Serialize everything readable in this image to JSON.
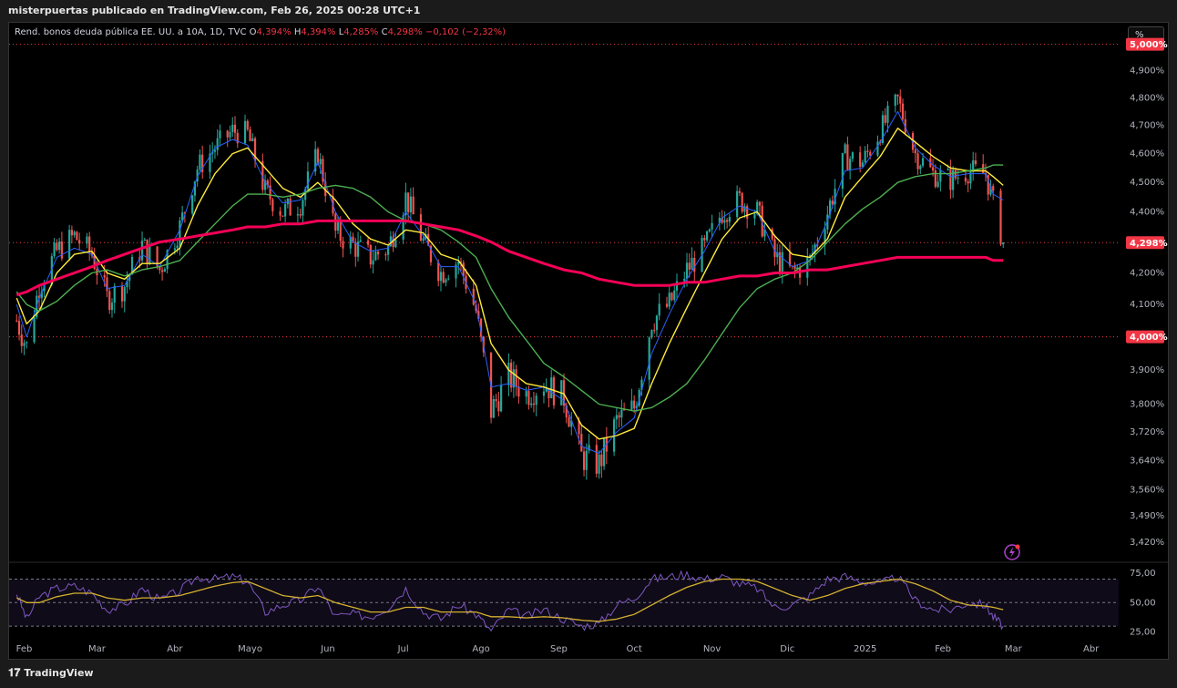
{
  "caption": "misterpuertas publicado en TradingView.com, Feb 26, 2025 00:28 UTC+1",
  "brand": "TradingView",
  "legend": {
    "symbol": "Rend. bonos deuda pública EE. UU. a 10A, 1D, TVC",
    "o_label": "O",
    "o_value": "4,394%",
    "h_label": "H",
    "h_value": "4,394%",
    "l_label": "L",
    "l_value": "4,285%",
    "c_label": "C",
    "c_value": "4,298%",
    "change": "−0,102 (−2,32%)"
  },
  "unit_button": "%",
  "colors": {
    "up": "#26a69a",
    "down": "#ef5350",
    "ma_fast": "#2962ff",
    "ma_yellow": "#ffeb3b",
    "ma_green": "#4caf50",
    "ma_long": "#f50057",
    "rsi_line": "#7e57c2",
    "rsi_avg": "#d4b030",
    "level_tag": "#f23645"
  },
  "chart_data": [
    {
      "type": "candlestick",
      "title": "Rend. bonos deuda pública EE. UU. a 10A, 1D, TVC",
      "x_ticks": [
        "Feb",
        "Mar",
        "Abr",
        "Mayo",
        "Jun",
        "Jul",
        "Ago",
        "Sep",
        "Oct",
        "Nov",
        "Dic",
        "2025",
        "Feb",
        "Mar",
        "Abr"
      ],
      "y_ticks": [
        "4,900%",
        "4,800%",
        "4,700%",
        "4,600%",
        "4,500%",
        "4,400%",
        "4,200%",
        "4,100%",
        "3,900%",
        "3,800%",
        "3,720%",
        "3,640%",
        "3,560%",
        "3,490%",
        "3,420%"
      ],
      "y_scale": "log",
      "ylim": [
        3.38,
        5.03
      ],
      "levels": [
        {
          "value": 5.0,
          "label": "5,000%"
        },
        {
          "value": 4.0,
          "label": "4,000%"
        }
      ],
      "last_price": {
        "value": 4.298,
        "label": "4,298%"
      },
      "close_path": [
        [
          "2024-01-29",
          4.05
        ],
        [
          "2024-02-02",
          3.97
        ],
        [
          "2024-02-07",
          4.16
        ],
        [
          "2024-02-14",
          4.27
        ],
        [
          "2024-02-21",
          4.32
        ],
        [
          "2024-02-28",
          4.26
        ],
        [
          "2024-03-05",
          4.12
        ],
        [
          "2024-03-12",
          4.16
        ],
        [
          "2024-03-19",
          4.29
        ],
        [
          "2024-03-26",
          4.21
        ],
        [
          "2024-04-03",
          4.35
        ],
        [
          "2024-04-10",
          4.55
        ],
        [
          "2024-04-17",
          4.62
        ],
        [
          "2024-04-24",
          4.68
        ],
        [
          "2024-04-30",
          4.67
        ],
        [
          "2024-05-07",
          4.47
        ],
        [
          "2024-05-14",
          4.4
        ],
        [
          "2024-05-21",
          4.43
        ],
        [
          "2024-05-28",
          4.6
        ],
        [
          "2024-06-04",
          4.33
        ],
        [
          "2024-06-11",
          4.29
        ],
        [
          "2024-06-18",
          4.25
        ],
        [
          "2024-06-25",
          4.28
        ],
        [
          "2024-07-02",
          4.45
        ],
        [
          "2024-07-09",
          4.3
        ],
        [
          "2024-07-16",
          4.2
        ],
        [
          "2024-07-23",
          4.24
        ],
        [
          "2024-07-30",
          4.08
        ],
        [
          "2024-08-05",
          3.78
        ],
        [
          "2024-08-12",
          3.88
        ],
        [
          "2024-08-19",
          3.83
        ],
        [
          "2024-08-26",
          3.86
        ],
        [
          "2024-09-03",
          3.82
        ],
        [
          "2024-09-10",
          3.65
        ],
        [
          "2024-09-17",
          3.63
        ],
        [
          "2024-09-24",
          3.75
        ],
        [
          "2024-10-01",
          3.79
        ],
        [
          "2024-10-08",
          4.05
        ],
        [
          "2024-10-15",
          4.1
        ],
        [
          "2024-10-22",
          4.21
        ],
        [
          "2024-10-29",
          4.28
        ],
        [
          "2024-11-05",
          4.4
        ],
        [
          "2024-11-12",
          4.44
        ],
        [
          "2024-11-19",
          4.4
        ],
        [
          "2024-11-26",
          4.25
        ],
        [
          "2024-12-03",
          4.2
        ],
        [
          "2024-12-10",
          4.24
        ],
        [
          "2024-12-17",
          4.4
        ],
        [
          "2024-12-24",
          4.59
        ],
        [
          "2024-12-31",
          4.57
        ],
        [
          "2025-01-07",
          4.68
        ],
        [
          "2025-01-14",
          4.79
        ],
        [
          "2025-01-21",
          4.6
        ],
        [
          "2025-01-28",
          4.53
        ],
        [
          "2025-02-04",
          4.51
        ],
        [
          "2025-02-11",
          4.54
        ],
        [
          "2025-02-18",
          4.53
        ],
        [
          "2025-02-21",
          4.43
        ],
        [
          "2025-02-25",
          4.298
        ]
      ],
      "moving_averages": [
        {
          "color": "#2962ff",
          "values": [
            4.1,
            4.0,
            4.12,
            4.25,
            4.28,
            4.26,
            4.15,
            4.16,
            4.26,
            4.22,
            4.34,
            4.52,
            4.62,
            4.65,
            4.63,
            4.5,
            4.43,
            4.44,
            4.57,
            4.4,
            4.3,
            4.27,
            4.28,
            4.4,
            4.32,
            4.22,
            4.22,
            4.1,
            3.85,
            3.86,
            3.84,
            3.85,
            3.81,
            3.68,
            3.66,
            3.72,
            3.76,
            3.95,
            4.07,
            4.18,
            4.27,
            4.38,
            4.42,
            4.4,
            4.27,
            4.22,
            4.24,
            4.37,
            4.54,
            4.55,
            4.64,
            4.75,
            4.62,
            4.56,
            4.52,
            4.53,
            4.53,
            4.46,
            4.44
          ]
        },
        {
          "color": "#ffeb3b",
          "values": [
            4.12,
            4.04,
            4.08,
            4.2,
            4.26,
            4.27,
            4.2,
            4.18,
            4.23,
            4.23,
            4.28,
            4.42,
            4.53,
            4.6,
            4.62,
            4.55,
            4.48,
            4.45,
            4.5,
            4.44,
            4.36,
            4.31,
            4.29,
            4.34,
            4.33,
            4.26,
            4.24,
            4.16,
            3.98,
            3.9,
            3.86,
            3.85,
            3.83,
            3.74,
            3.7,
            3.71,
            3.73,
            3.86,
            3.98,
            4.09,
            4.2,
            4.31,
            4.38,
            4.4,
            4.32,
            4.26,
            4.25,
            4.31,
            4.45,
            4.52,
            4.59,
            4.69,
            4.64,
            4.59,
            4.55,
            4.54,
            4.54,
            4.52,
            4.49
          ]
        },
        {
          "color": "#4caf50",
          "values": [
            4.14,
            4.1,
            4.08,
            4.11,
            4.16,
            4.2,
            4.21,
            4.19,
            4.21,
            4.22,
            4.24,
            4.3,
            4.36,
            4.42,
            4.46,
            4.46,
            4.45,
            4.46,
            4.48,
            4.49,
            4.48,
            4.45,
            4.4,
            4.37,
            4.36,
            4.34,
            4.3,
            4.25,
            4.15,
            4.06,
            3.99,
            3.92,
            3.88,
            3.84,
            3.8,
            3.79,
            3.78,
            3.79,
            3.82,
            3.86,
            3.93,
            4.01,
            4.09,
            4.15,
            4.18,
            4.2,
            4.24,
            4.3,
            4.36,
            4.41,
            4.45,
            4.5,
            4.52,
            4.53,
            4.53,
            4.54,
            4.55,
            4.56,
            4.56
          ]
        },
        {
          "color": "#f50057",
          "values": [
            4.13,
            4.14,
            4.16,
            4.18,
            4.2,
            4.22,
            4.24,
            4.26,
            4.28,
            4.3,
            4.31,
            4.32,
            4.33,
            4.34,
            4.35,
            4.35,
            4.36,
            4.36,
            4.37,
            4.37,
            4.37,
            4.37,
            4.37,
            4.37,
            4.36,
            4.35,
            4.34,
            4.32,
            4.3,
            4.27,
            4.25,
            4.23,
            4.21,
            4.2,
            4.18,
            4.17,
            4.16,
            4.16,
            4.16,
            4.17,
            4.17,
            4.18,
            4.19,
            4.19,
            4.2,
            4.2,
            4.21,
            4.21,
            4.22,
            4.23,
            4.24,
            4.25,
            4.25,
            4.25,
            4.25,
            4.25,
            4.25,
            4.24,
            4.24
          ]
        }
      ]
    },
    {
      "type": "line",
      "title": "",
      "y_ticks": [
        "75,00",
        "50,00",
        "25,00"
      ],
      "ylim": [
        20,
        82
      ],
      "bands": [
        30,
        50,
        70
      ],
      "rsi": [
        58,
        36,
        55,
        62,
        64,
        58,
        44,
        48,
        62,
        52,
        60,
        72,
        70,
        72,
        68,
        42,
        48,
        52,
        64,
        38,
        40,
        38,
        46,
        62,
        42,
        36,
        48,
        40,
        26,
        44,
        38,
        44,
        36,
        30,
        32,
        48,
        54,
        70,
        72,
        74,
        70,
        72,
        66,
        62,
        46,
        48,
        56,
        70,
        72,
        68,
        66,
        72,
        52,
        44,
        44,
        50,
        48,
        38,
        30
      ],
      "rsi_avg": [
        54,
        50,
        50,
        55,
        58,
        58,
        54,
        52,
        54,
        54,
        56,
        60,
        64,
        67,
        68,
        62,
        56,
        54,
        56,
        50,
        46,
        42,
        42,
        46,
        46,
        42,
        42,
        42,
        38,
        38,
        37,
        38,
        37,
        35,
        34,
        36,
        40,
        48,
        56,
        63,
        68,
        70,
        70,
        68,
        62,
        56,
        52,
        56,
        62,
        66,
        68,
        70,
        66,
        60,
        52,
        48,
        47,
        46,
        44
      ]
    }
  ]
}
